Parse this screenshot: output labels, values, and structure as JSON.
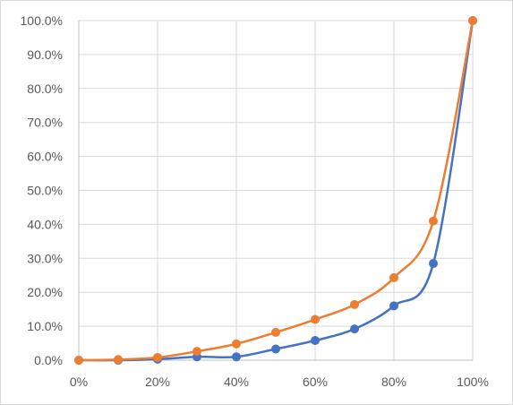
{
  "chart_data": {
    "type": "line",
    "title": "",
    "xlabel": "",
    "ylabel": "",
    "x": [
      0,
      10,
      20,
      30,
      40,
      50,
      60,
      70,
      80,
      90,
      100
    ],
    "x_tick_values": [
      0,
      20,
      40,
      60,
      80,
      100
    ],
    "x_tick_labels": [
      "0%",
      "20%",
      "40%",
      "60%",
      "80%",
      "100%"
    ],
    "y_tick_values": [
      0,
      10,
      20,
      30,
      40,
      50,
      60,
      70,
      80,
      90,
      100
    ],
    "y_tick_labels": [
      "0.0%",
      "10.0%",
      "20.0%",
      "30.0%",
      "40.0%",
      "50.0%",
      "60.0%",
      "70.0%",
      "80.0%",
      "90.0%",
      "100.0%"
    ],
    "xlim": [
      0,
      100
    ],
    "ylim": [
      0,
      100
    ],
    "grid": true,
    "legend": "none",
    "smooth": true,
    "series": [
      {
        "color": "#4472c4",
        "values": [
          0.0,
          0.0,
          0.3,
          1.0,
          1.0,
          3.3,
          5.8,
          9.2,
          16.0,
          28.5,
          100.0
        ]
      },
      {
        "color": "#ed7d31",
        "values": [
          0.0,
          0.2,
          0.8,
          2.6,
          4.8,
          8.2,
          12.0,
          16.4,
          24.3,
          41.0,
          100.0
        ]
      }
    ],
    "gridline_color": "#d9d9d9",
    "axis_line_color": "#bfbfbf",
    "tick_label_color": "#595959"
  }
}
